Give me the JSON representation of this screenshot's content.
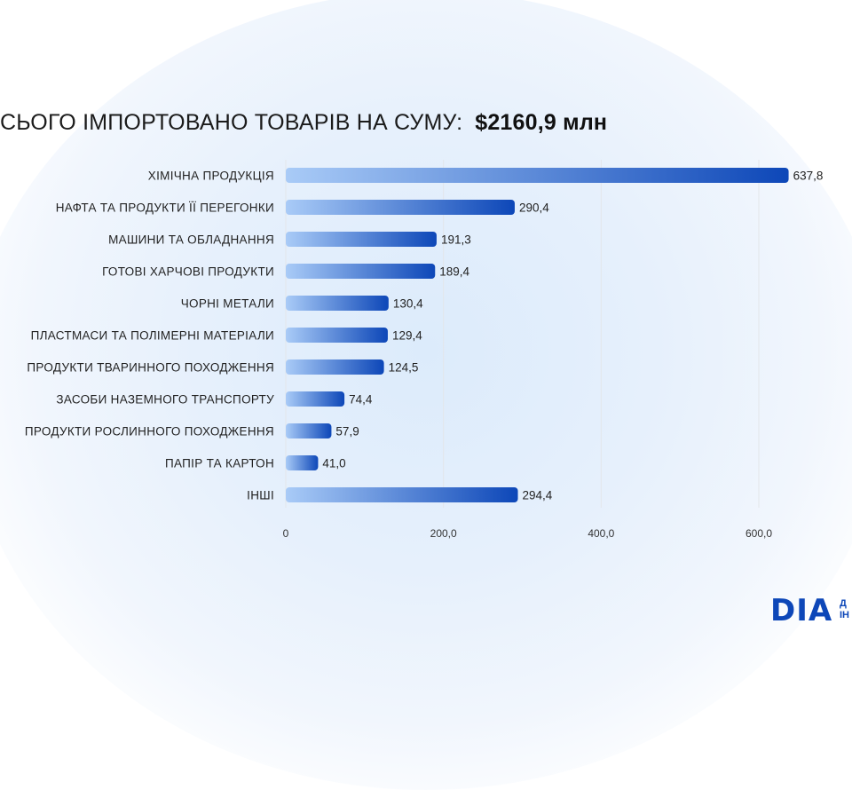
{
  "header": {
    "title": "СЬОГО ІМПОРТОВАНО ТОВАРІВ НА СУМУ:",
    "total": "$2160,9 млн"
  },
  "logo": {
    "text": "DIA",
    "side_top": "Д",
    "side_bottom": "ІН"
  },
  "colors": {
    "bar_start": "#a9cbf7",
    "bar_end": "#0d47b8",
    "grid": "#e3e6ea"
  },
  "chart_data": {
    "type": "bar",
    "orientation": "horizontal",
    "categories": [
      "ХІМІЧНА ПРОДУКЦІЯ",
      "НАФТА ТА ПРОДУКТИ ЇЇ ПЕРЕГОНКИ",
      "МАШИНИ ТА ОБЛАДНАННЯ",
      "ГОТОВІ ХАРЧОВІ ПРОДУКТИ",
      "ЧОРНІ МЕТАЛИ",
      "ПЛАСТМАСИ ТА ПОЛІМЕРНІ МАТЕРІАЛИ",
      "ПРОДУКТИ ТВАРИННОГО ПОХОДЖЕННЯ",
      "ЗАСОБИ НАЗЕМНОГО ТРАНСПОРТУ",
      "ПРОДУКТИ РОСЛИННОГО ПОХОДЖЕННЯ",
      "ПАПІР ТА КАРТОН",
      "ІНШІ"
    ],
    "values": [
      637.8,
      290.4,
      191.3,
      189.4,
      130.4,
      129.4,
      124.5,
      74.4,
      57.9,
      41.0,
      294.4
    ],
    "value_labels": [
      "637,8",
      "290,4",
      "191,3",
      "189,4",
      "130,4",
      "129,4",
      "124,5",
      "74,4",
      "57,9",
      "41,0",
      "294,4"
    ],
    "xlim": [
      0,
      600
    ],
    "x_ticks": [
      0,
      200,
      400,
      600
    ],
    "x_tick_labels": [
      "0",
      "200,0",
      "400,0",
      "600,0"
    ],
    "grid": true
  }
}
